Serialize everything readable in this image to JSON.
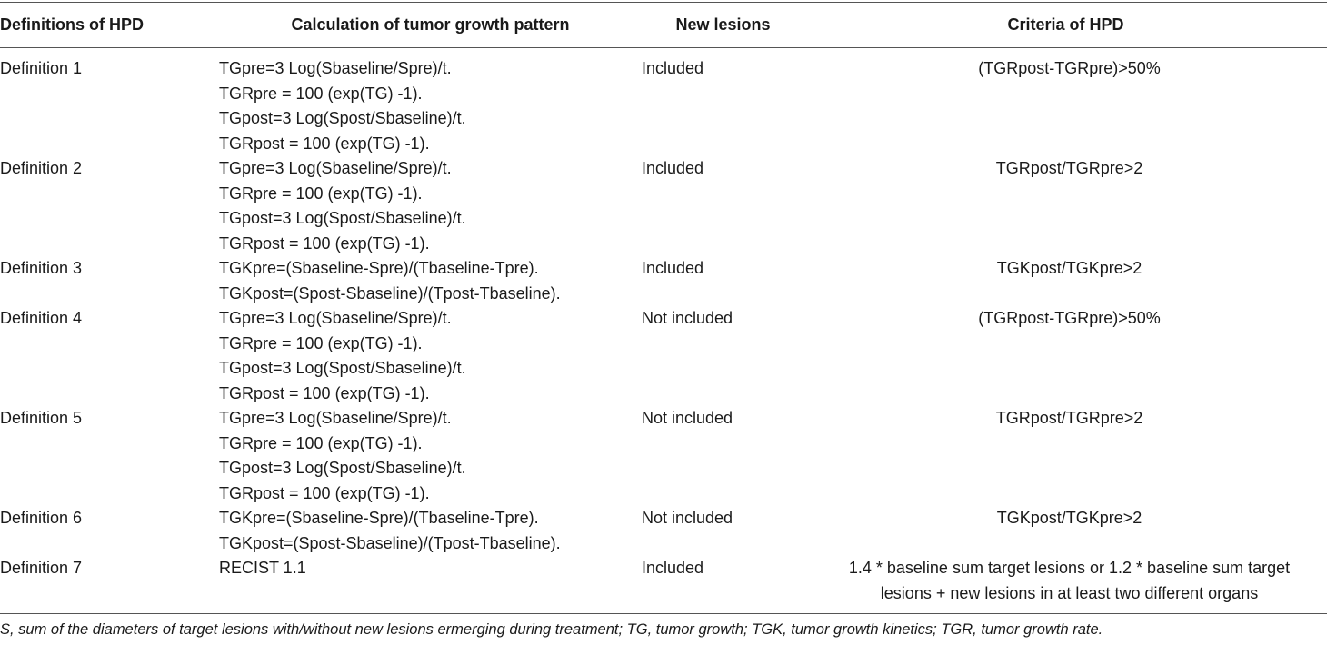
{
  "table": {
    "header": [
      "Definitions of HPD",
      "Calculation of tumor growth pattern",
      "New lesions",
      "Criteria of HPD"
    ],
    "rows": [
      [
        "Definition 1",
        [
          "TGpre=3 Log(Sbaseline/Spre)/t.",
          "TGRpre = 100 (exp(TG) -1).",
          "TGpost=3 Log(Spost/Sbaseline)/t.",
          "TGRpost = 100 (exp(TG) -1)."
        ],
        "Included",
        "(TGRpost-TGRpre)>50%"
      ],
      [
        "Definition 2",
        [
          "TGpre=3 Log(Sbaseline/Spre)/t.",
          "TGRpre = 100 (exp(TG) -1).",
          "TGpost=3 Log(Spost/Sbaseline)/t.",
          "TGRpost = 100 (exp(TG) -1)."
        ],
        "Included",
        "TGRpost/TGRpre>2"
      ],
      [
        "Definition 3",
        [
          "TGKpre=(Sbaseline-Spre)/(Tbaseline-Tpre).",
          "TGKpost=(Spost-Sbaseline)/(Tpost-Tbaseline)."
        ],
        "Included",
        "TGKpost/TGKpre>2"
      ],
      [
        "Definition 4",
        [
          "TGpre=3 Log(Sbaseline/Spre)/t.",
          "TGRpre = 100 (exp(TG) -1).",
          "TGpost=3 Log(Spost/Sbaseline)/t.",
          "TGRpost = 100 (exp(TG) -1)."
        ],
        "Not included",
        "(TGRpost-TGRpre)>50%"
      ],
      [
        "Definition 5",
        [
          "TGpre=3 Log(Sbaseline/Spre)/t.",
          "TGRpre = 100 (exp(TG) -1).",
          "TGpost=3 Log(Spost/Sbaseline)/t.",
          "TGRpost = 100 (exp(TG) -1)."
        ],
        "Not included",
        "TGRpost/TGRpre>2"
      ],
      [
        "Definition 6",
        [
          "TGKpre=(Sbaseline-Spre)/(Tbaseline-Tpre).",
          "TGKpost=(Spost-Sbaseline)/(Tpost-Tbaseline)."
        ],
        "Not included",
        "TGKpost/TGKpre>2"
      ],
      [
        "Definition 7",
        [
          "RECIST 1.1"
        ],
        "Included",
        "1.4 * baseline sum target lesions or 1.2 * baseline sum target lesions + new lesions in at least two different organs"
      ]
    ],
    "footnote": "S, sum of the diameters of target lesions with/without new lesions ermerging during treatment; TG, tumor growth; TGK, tumor growth kinetics; TGR, tumor growth rate."
  }
}
